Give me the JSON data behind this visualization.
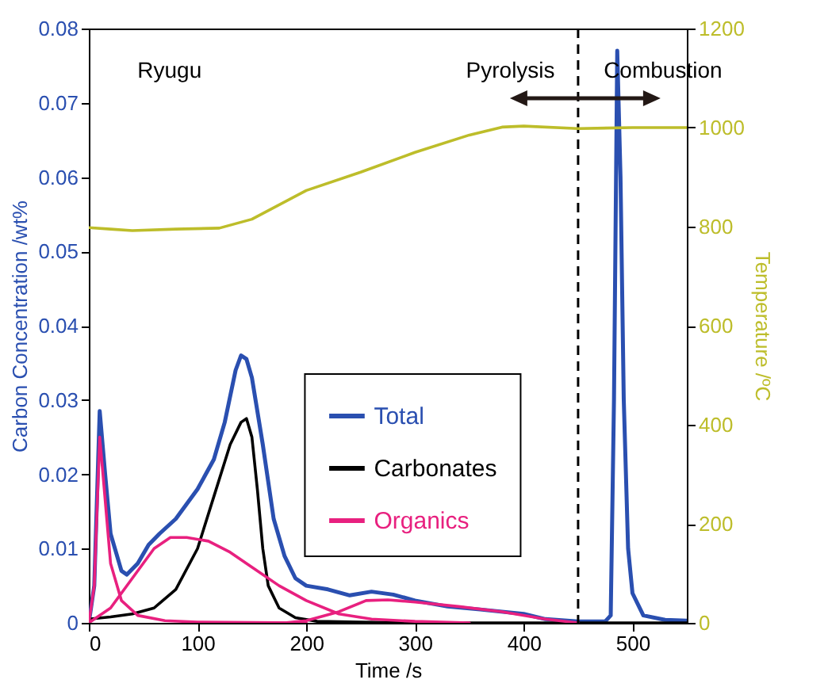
{
  "chart_data": {
    "type": "line",
    "xlabel": "Time /s",
    "ylabel": "Carbon Concentration /wt%",
    "y2label": "Temperature /ºC",
    "annotations": [
      "Ryugu",
      "Pyrolysis",
      "Combustion"
    ],
    "xlim": [
      0,
      550
    ],
    "xticks": [
      0,
      100,
      200,
      300,
      400,
      500
    ],
    "ylim": [
      0,
      0.08
    ],
    "yticks": [
      0,
      0.01,
      0.02,
      0.03,
      0.04,
      0.05,
      0.06,
      0.07,
      0.08
    ],
    "y2lim": [
      0,
      1200
    ],
    "y2ticks": [
      0,
      200,
      400,
      600,
      800,
      1000,
      1200
    ],
    "ref_lines": [
      {
        "axis": "x",
        "value": 450,
        "color": "#000000",
        "line_style": "dashed"
      }
    ],
    "legend": "center",
    "series": [
      {
        "name": "Total",
        "color": "#2a4fb0",
        "x": [
          0,
          5,
          10,
          15,
          20,
          30,
          35,
          45,
          55,
          65,
          80,
          100,
          115,
          125,
          135,
          140,
          145,
          150,
          160,
          170,
          180,
          190,
          200,
          220,
          240,
          260,
          280,
          300,
          330,
          360,
          400,
          420,
          450,
          475,
          480,
          483,
          486,
          489,
          492,
          496,
          500,
          510,
          530,
          550
        ],
        "values": [
          0,
          0.005,
          0.0285,
          0.02,
          0.012,
          0.007,
          0.0065,
          0.008,
          0.0105,
          0.012,
          0.014,
          0.018,
          0.022,
          0.027,
          0.034,
          0.036,
          0.0355,
          0.033,
          0.024,
          0.014,
          0.009,
          0.006,
          0.005,
          0.0045,
          0.0037,
          0.0042,
          0.0038,
          0.003,
          0.0022,
          0.0018,
          0.0012,
          0.0005,
          0.0002,
          0.0002,
          0.001,
          0.03,
          0.077,
          0.06,
          0.03,
          0.01,
          0.004,
          0.001,
          0.0004,
          0.0003
        ]
      },
      {
        "name": "Carbonates",
        "color": "#000000",
        "x": [
          0,
          20,
          40,
          60,
          80,
          100,
          115,
          130,
          140,
          145,
          150,
          155,
          160,
          165,
          175,
          190,
          210,
          250,
          300,
          550
        ],
        "values": [
          0.0005,
          0.0008,
          0.0012,
          0.002,
          0.0045,
          0.01,
          0.017,
          0.024,
          0.027,
          0.0275,
          0.025,
          0.018,
          0.01,
          0.005,
          0.002,
          0.0007,
          0.0002,
          0.0001,
          0,
          0
        ]
      },
      {
        "name": "Organics",
        "color": "#e8207f",
        "x": [
          0,
          20,
          40,
          60,
          75,
          90,
          110,
          130,
          150,
          175,
          200,
          230,
          260,
          300,
          350
        ],
        "values": [
          0,
          0.002,
          0.006,
          0.01,
          0.0115,
          0.0115,
          0.011,
          0.0095,
          0.0075,
          0.005,
          0.003,
          0.0012,
          0.0005,
          0.0002,
          0
        ]
      },
      {
        "color": "#e8207f",
        "x": [
          0,
          5,
          10,
          13,
          20,
          30,
          45,
          70,
          100,
          200
        ],
        "values": [
          0,
          0.005,
          0.025,
          0.02,
          0.008,
          0.003,
          0.001,
          0.0003,
          0.0001,
          0
        ]
      },
      {
        "color": "#e8207f",
        "x": [
          180,
          200,
          230,
          255,
          275,
          300,
          340,
          380,
          420,
          450
        ],
        "values": [
          0,
          0.0003,
          0.0015,
          0.003,
          0.0031,
          0.0028,
          0.0022,
          0.0015,
          0.0005,
          0
        ]
      },
      {
        "color": "#bdbd2a",
        "axis": "y2",
        "x": [
          0,
          20,
          40,
          80,
          120,
          150,
          200,
          250,
          300,
          350,
          380,
          400,
          450,
          500,
          550
        ],
        "values": [
          798,
          795,
          792,
          795,
          797,
          815,
          873,
          910,
          950,
          985,
          1001,
          1003,
          998,
          1000,
          1000
        ]
      }
    ]
  }
}
